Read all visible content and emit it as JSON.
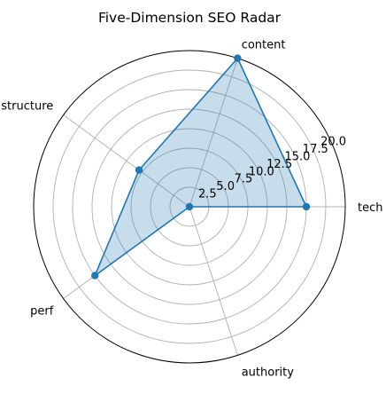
{
  "chart_data": {
    "type": "radar",
    "title": "Five-Dimension SEO Radar",
    "categories": [
      "tech",
      "content",
      "structure",
      "perf",
      "authority"
    ],
    "series": [
      {
        "values": [
          15,
          20,
          8,
          15,
          0
        ]
      }
    ],
    "rlim": [
      0,
      20
    ],
    "rticks": [
      "2.5",
      "5.0",
      "7.5",
      "10.0",
      "12.5",
      "15.0",
      "17.5",
      "20.0"
    ],
    "grid": true,
    "colors": {
      "line": "#1f77b4",
      "fill": "#1f77b4",
      "grid": "#b0b0b0",
      "frame": "#000000"
    }
  }
}
